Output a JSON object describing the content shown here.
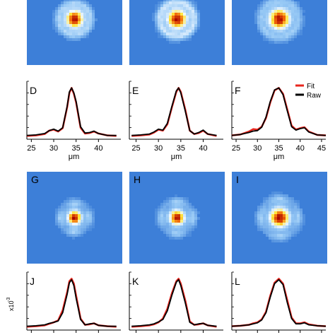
{
  "colors": {
    "background_blue": "#3d7fd8",
    "fit": "#e8261e",
    "raw": "#000000",
    "ring": "#8ec2f0",
    "core": "#c81800",
    "core_hot": "#ffe23a"
  },
  "legend": {
    "fit_label": "Fit",
    "raw_label": "Raw",
    "placement": "top-right of panel F"
  },
  "scale_label": "x10",
  "scale_exponent": "-3",
  "chart_data": [
    {
      "type": "heatmap",
      "panel": "",
      "pattern": "ring",
      "spot_radius_um": 2.5,
      "ring_radius_um": 5.5,
      "ring_strength": 0.55
    },
    {
      "type": "heatmap",
      "panel": "",
      "pattern": "ring",
      "spot_radius_um": 2.8,
      "ring_radius_um": 6.0,
      "ring_strength": 0.65
    },
    {
      "type": "heatmap",
      "panel": "",
      "pattern": "ring",
      "spot_radius_um": 3.0,
      "ring_radius_um": 6.5,
      "ring_strength": 0.45
    },
    {
      "type": "line",
      "panel": "D",
      "xlabel": "μm",
      "xlim": [
        24,
        45
      ],
      "ylim": [
        0,
        1.05
      ],
      "xticks": [
        25,
        30,
        35,
        40
      ],
      "show_x_ticklabels": true,
      "x": [
        24,
        26,
        28,
        29,
        30,
        31,
        32,
        33,
        33.5,
        34,
        34.5,
        35,
        36,
        37,
        38,
        39,
        40,
        42,
        44
      ],
      "series": [
        {
          "name": "Fit",
          "values": [
            0.01,
            0.02,
            0.05,
            0.12,
            0.14,
            0.1,
            0.17,
            0.6,
            0.9,
            1.0,
            0.88,
            0.7,
            0.18,
            0.06,
            0.07,
            0.1,
            0.06,
            0.02,
            0.01
          ]
        },
        {
          "name": "Raw",
          "values": [
            0.02,
            0.03,
            0.06,
            0.12,
            0.15,
            0.11,
            0.18,
            0.62,
            0.92,
            1.0,
            0.9,
            0.72,
            0.2,
            0.07,
            0.08,
            0.11,
            0.06,
            0.02,
            0.02
          ]
        }
      ]
    },
    {
      "type": "line",
      "panel": "E",
      "xlabel": "μm",
      "xlim": [
        23.5,
        44.5
      ],
      "ylim": [
        0,
        1.05
      ],
      "xticks": [
        25,
        30,
        35,
        40
      ],
      "show_x_ticklabels": true,
      "x": [
        24,
        26,
        28,
        29,
        30,
        31,
        32,
        33,
        34,
        34.5,
        35,
        36,
        37,
        38,
        39,
        40,
        41,
        43
      ],
      "series": [
        {
          "name": "Fit",
          "values": [
            0.01,
            0.02,
            0.04,
            0.08,
            0.14,
            0.12,
            0.25,
            0.6,
            0.92,
            1.0,
            0.92,
            0.55,
            0.12,
            0.05,
            0.07,
            0.12,
            0.05,
            0.01
          ]
        },
        {
          "name": "Raw",
          "values": [
            0.02,
            0.03,
            0.05,
            0.09,
            0.15,
            0.13,
            0.27,
            0.62,
            0.94,
            1.0,
            0.9,
            0.52,
            0.12,
            0.05,
            0.08,
            0.13,
            0.05,
            0.02
          ]
        }
      ]
    },
    {
      "type": "line",
      "panel": "F",
      "xlabel": "μm",
      "xlim": [
        24,
        46
      ],
      "ylim": [
        0,
        1.05
      ],
      "xticks": [
        25,
        30,
        35,
        40,
        45
      ],
      "show_x_ticklabels": true,
      "x": [
        24,
        26,
        28,
        29,
        30,
        31,
        32,
        33,
        34,
        35,
        36,
        37,
        38,
        39,
        40,
        41,
        42,
        44,
        46
      ],
      "series": [
        {
          "name": "Fit",
          "values": [
            0.02,
            0.04,
            0.1,
            0.15,
            0.14,
            0.2,
            0.38,
            0.7,
            0.95,
            1.0,
            0.88,
            0.55,
            0.22,
            0.14,
            0.17,
            0.19,
            0.1,
            0.03,
            0.02
          ]
        },
        {
          "name": "Raw",
          "values": [
            0.02,
            0.04,
            0.08,
            0.11,
            0.12,
            0.19,
            0.4,
            0.72,
            0.96,
            1.0,
            0.86,
            0.52,
            0.2,
            0.13,
            0.16,
            0.18,
            0.09,
            0.03,
            0.02
          ]
        }
      ]
    },
    {
      "type": "heatmap",
      "panel": "G",
      "pattern": "cross",
      "spot_radius_um": 2.0,
      "ring_radius_um": 5.0,
      "ring_strength": 0.6
    },
    {
      "type": "heatmap",
      "panel": "H",
      "pattern": "cross",
      "spot_radius_um": 2.2,
      "ring_radius_um": 5.5,
      "ring_strength": 0.6
    },
    {
      "type": "heatmap",
      "panel": "I",
      "pattern": "cross",
      "spot_radius_um": 2.8,
      "ring_radius_um": 6.5,
      "ring_strength": 0.55
    },
    {
      "type": "line",
      "panel": "J",
      "xlabel": "",
      "xlim": [
        24,
        45
      ],
      "ylim": [
        0,
        1.05
      ],
      "xticks": [
        25,
        30,
        35,
        40
      ],
      "show_x_ticklabels": false,
      "x": [
        24,
        26,
        28,
        29,
        30,
        31,
        32,
        33,
        33.5,
        34,
        34.5,
        35,
        36,
        37,
        38,
        39,
        40,
        42,
        44
      ],
      "series": [
        {
          "name": "Fit",
          "values": [
            0.01,
            0.02,
            0.04,
            0.07,
            0.1,
            0.14,
            0.35,
            0.72,
            0.95,
            1.0,
            0.9,
            0.65,
            0.18,
            0.05,
            0.06,
            0.08,
            0.04,
            0.02,
            0.01
          ]
        },
        {
          "name": "Raw",
          "values": [
            0.02,
            0.03,
            0.05,
            0.08,
            0.1,
            0.13,
            0.3,
            0.68,
            0.92,
            0.98,
            0.86,
            0.6,
            0.16,
            0.05,
            0.07,
            0.08,
            0.04,
            0.02,
            0.02
          ]
        }
      ]
    },
    {
      "type": "line",
      "panel": "K",
      "xlabel": "",
      "xlim": [
        23.5,
        44.5
      ],
      "ylim": [
        0,
        1.05
      ],
      "xticks": [
        25,
        30,
        35,
        40
      ],
      "show_x_ticklabels": false,
      "x": [
        24,
        26,
        28,
        29,
        30,
        31,
        32,
        33,
        34,
        34.5,
        35,
        36,
        37,
        38,
        39,
        40,
        41,
        43
      ],
      "series": [
        {
          "name": "Fit",
          "values": [
            0.01,
            0.02,
            0.04,
            0.06,
            0.1,
            0.18,
            0.38,
            0.7,
            0.95,
            1.0,
            0.9,
            0.55,
            0.12,
            0.05,
            0.06,
            0.08,
            0.04,
            0.01
          ]
        },
        {
          "name": "Raw",
          "values": [
            0.02,
            0.03,
            0.05,
            0.07,
            0.11,
            0.16,
            0.34,
            0.66,
            0.93,
            0.98,
            0.86,
            0.5,
            0.1,
            0.05,
            0.07,
            0.08,
            0.04,
            0.02
          ]
        }
      ]
    },
    {
      "type": "line",
      "panel": "L",
      "xlabel": "",
      "xlim": [
        24,
        46
      ],
      "ylim": [
        0,
        1.05
      ],
      "xticks": [
        25,
        30,
        35,
        40,
        45
      ],
      "show_x_ticklabels": false,
      "x": [
        24,
        26,
        28,
        29,
        30,
        31,
        32,
        33,
        34,
        35,
        36,
        37,
        38,
        39,
        40,
        41,
        42,
        44,
        46
      ],
      "series": [
        {
          "name": "Fit",
          "values": [
            0.02,
            0.03,
            0.05,
            0.08,
            0.1,
            0.16,
            0.32,
            0.65,
            0.92,
            1.0,
            0.9,
            0.55,
            0.2,
            0.08,
            0.08,
            0.1,
            0.06,
            0.03,
            0.02
          ]
        },
        {
          "name": "Raw",
          "values": [
            0.02,
            0.03,
            0.05,
            0.07,
            0.09,
            0.15,
            0.3,
            0.62,
            0.9,
            0.98,
            0.88,
            0.5,
            0.18,
            0.07,
            0.07,
            0.09,
            0.05,
            0.03,
            0.02
          ]
        }
      ]
    }
  ]
}
